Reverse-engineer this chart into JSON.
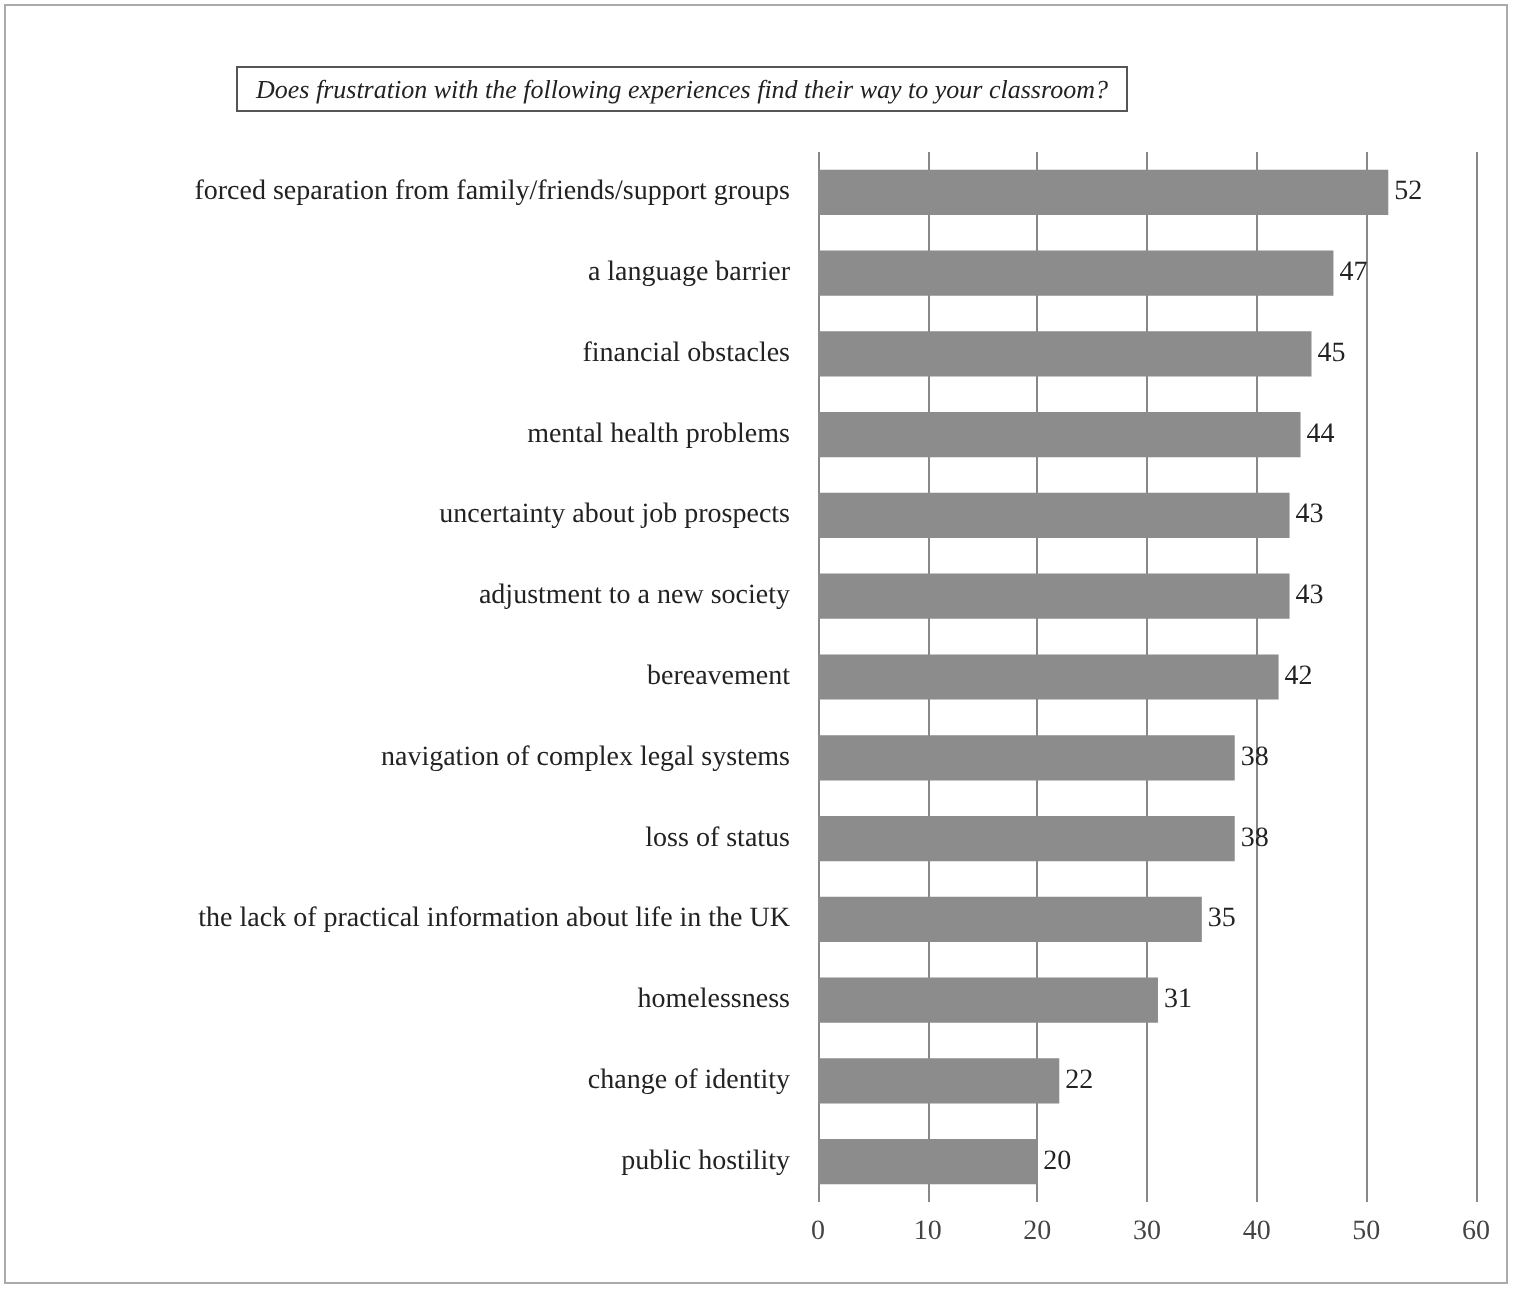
{
  "chart_data": {
    "type": "bar",
    "orientation": "horizontal",
    "title": "Does frustration with the following experiences find their way to your classroom?",
    "categories": [
      "forced separation from family/friends/support groups",
      "a language barrier",
      "financial obstacles",
      "mental health problems",
      "uncertainty about job prospects",
      "adjustment to a new society",
      "bereavement",
      "navigation of complex legal systems",
      "loss of status",
      "the lack of practical information about life in the UK",
      "homelessness",
      "change of identity",
      "public hostility"
    ],
    "values": [
      52,
      47,
      45,
      44,
      43,
      43,
      42,
      38,
      38,
      35,
      31,
      22,
      20
    ],
    "color": "#8c8c8c",
    "xlim": [
      0,
      60
    ],
    "xticks": [
      0,
      10,
      20,
      30,
      40,
      50,
      60
    ],
    "grid": "x",
    "data_labels": true
  }
}
